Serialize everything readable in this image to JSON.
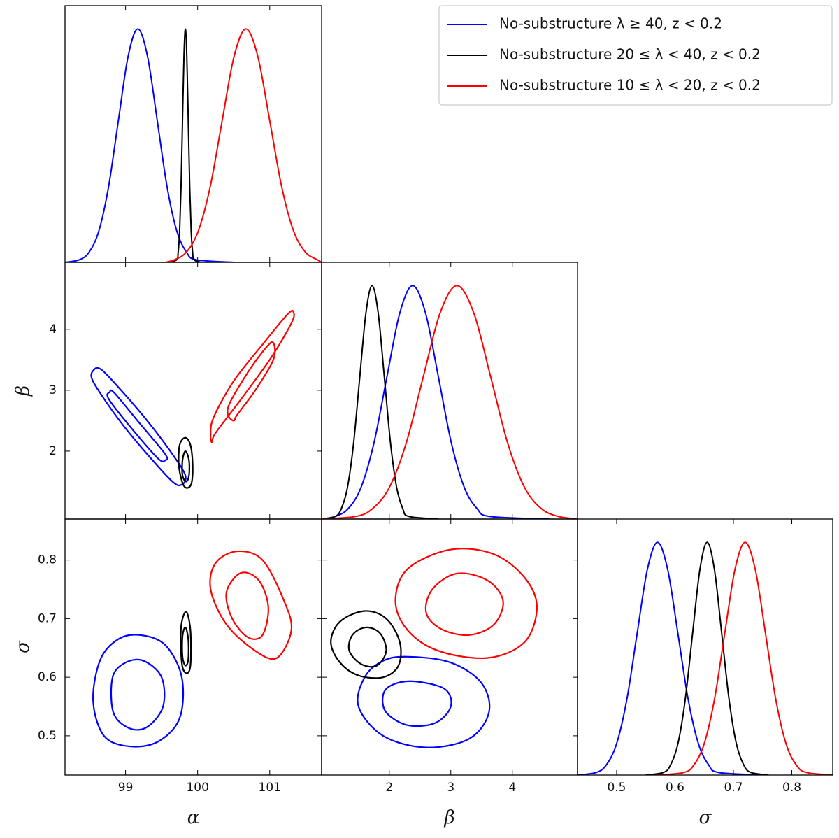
{
  "chart_data": [
    {
      "type": "density",
      "xlim": [
        98.16,
        101.72
      ],
      "ylim": [
        0,
        1.1
      ],
      "xticks": [
        99,
        100,
        101
      ],
      "series": [
        {
          "name": "No-substructure λ ≥ 40, z < 0.2",
          "color": "#0000ff",
          "x": [
            98.16,
            98.36,
            98.495,
            98.63,
            98.765,
            98.9,
            99.035,
            99.17,
            99.305,
            99.44,
            99.575,
            99.71,
            99.845,
            99.98,
            100.5
          ],
          "values": [
            0,
            0.011,
            0.044,
            0.135,
            0.325,
            0.607,
            0.882,
            1,
            0.882,
            0.607,
            0.325,
            0.135,
            0.044,
            0.011,
            0
          ]
        },
        {
          "name": "No-substructure 20 ≤ λ < 40, z < 0.2",
          "color": "#000000",
          "x": [
            99.6,
            99.71,
            99.73,
            99.75,
            99.77,
            99.79,
            99.81,
            99.83,
            99.85,
            99.87,
            99.89,
            99.91,
            99.93,
            99.95,
            100.05
          ],
          "values": [
            0,
            0.011,
            0.044,
            0.135,
            0.325,
            0.607,
            0.882,
            1,
            0.882,
            0.607,
            0.325,
            0.135,
            0.044,
            0.011,
            0
          ]
        },
        {
          "name": "No-substructure 10 ≤ λ < 20, z < 0.2",
          "color": "#ff0000",
          "x": [
            99.55,
            99.68,
            99.845,
            100.01,
            100.175,
            100.34,
            100.505,
            100.67,
            100.835,
            101.0,
            101.165,
            101.33,
            101.495,
            101.66,
            101.72
          ],
          "values": [
            0,
            0.011,
            0.044,
            0.135,
            0.325,
            0.607,
            0.882,
            1,
            0.882,
            0.607,
            0.325,
            0.135,
            0.044,
            0.011,
            0
          ]
        }
      ]
    },
    {
      "type": "contour",
      "ylabel": "β",
      "xlim": [
        98.16,
        101.72
      ],
      "ylim": [
        0.885,
        5.1
      ],
      "xticks": [
        99,
        100,
        101
      ],
      "yticks": [
        2,
        3,
        4
      ],
      "series": [
        {
          "color": "#0000ff",
          "contours": [
            {
              "x": [
                98.55,
                98.65,
                98.9,
                99.3,
                99.65,
                99.83,
                99.78,
                99.65,
                99.3,
                98.95,
                98.65,
                98.53
              ],
              "y": [
                3.32,
                3.35,
                3.05,
                2.5,
                1.95,
                1.6,
                1.45,
                1.5,
                1.95,
                2.45,
                2.95,
                3.2
              ]
            },
            {
              "x": [
                98.78,
                98.85,
                99.2,
                99.55,
                99.55,
                99.45,
                99.1,
                98.77
              ],
              "y": [
                2.97,
                2.95,
                2.45,
                1.95,
                1.85,
                1.88,
                2.35,
                2.85
              ]
            }
          ]
        },
        {
          "color": "#000000",
          "contours": [
            {
              "x": [
                99.83,
                99.9,
                99.93,
                99.92,
                99.87,
                99.8,
                99.74,
                99.75
              ],
              "y": [
                2.22,
                2.1,
                1.8,
                1.5,
                1.4,
                1.45,
                1.75,
                2.1
              ]
            },
            {
              "x": [
                99.83,
                99.88,
                99.88,
                99.84,
                99.79,
                99.79
              ],
              "y": [
                2.0,
                1.85,
                1.6,
                1.5,
                1.6,
                1.85
              ]
            }
          ]
        },
        {
          "color": "#ff0000",
          "contours": [
            {
              "x": [
                100.2,
                100.25,
                100.6,
                101.0,
                101.3,
                101.33,
                101.25,
                100.9,
                100.5,
                100.22,
                100.18
              ],
              "y": [
                2.15,
                2.3,
                2.85,
                3.5,
                4.1,
                4.28,
                4.25,
                3.75,
                3.15,
                2.55,
                2.25
              ]
            },
            {
              "x": [
                100.5,
                100.55,
                100.8,
                101.05,
                101.05,
                100.95,
                100.7,
                100.45,
                100.42
              ],
              "y": [
                2.5,
                2.6,
                3.0,
                3.5,
                3.78,
                3.7,
                3.3,
                2.8,
                2.6
              ]
            }
          ]
        }
      ]
    },
    {
      "type": "density",
      "xlim": [
        0.9,
        5.06
      ],
      "ylim": [
        0,
        1.1
      ],
      "xticks": [
        2,
        3,
        4
      ],
      "series": [
        {
          "color": "#0000ff",
          "x": [
            0.9,
            1.12,
            1.33,
            1.54,
            1.75,
            1.96,
            2.17,
            2.38,
            2.59,
            2.8,
            3.01,
            3.22,
            3.43,
            3.64,
            4.6
          ],
          "values": [
            0,
            0.011,
            0.044,
            0.135,
            0.325,
            0.607,
            0.882,
            1,
            0.882,
            0.607,
            0.325,
            0.135,
            0.044,
            0.011,
            0
          ]
        },
        {
          "color": "#000000",
          "x": [
            0.9,
            1.12,
            1.22,
            1.32,
            1.42,
            1.52,
            1.62,
            1.72,
            1.82,
            1.92,
            2.02,
            2.12,
            2.22,
            2.32,
            2.8
          ],
          "values": [
            0,
            0.011,
            0.044,
            0.135,
            0.325,
            0.607,
            0.882,
            1,
            0.882,
            0.607,
            0.325,
            0.135,
            0.044,
            0.011,
            0
          ]
        },
        {
          "color": "#ff0000",
          "x": [
            0.9,
            1.45,
            1.725,
            2.0,
            2.275,
            2.55,
            2.825,
            3.1,
            3.375,
            3.65,
            3.925,
            4.2,
            4.475,
            4.75,
            5.06
          ],
          "values": [
            0,
            0.011,
            0.044,
            0.135,
            0.325,
            0.607,
            0.882,
            1,
            0.882,
            0.607,
            0.325,
            0.135,
            0.044,
            0.011,
            0
          ]
        }
      ]
    },
    {
      "type": "contour",
      "xlabel": "α",
      "ylabel": "σ",
      "xlim": [
        98.16,
        101.72
      ],
      "ylim": [
        0.433,
        0.87
      ],
      "xticks": [
        99,
        100,
        101
      ],
      "yticks": [
        0.5,
        0.6,
        0.7,
        0.8
      ],
      "series": [
        {
          "color": "#0000ff",
          "contours": [
            {
              "x": [
                99.2,
                99.55,
                99.78,
                99.75,
                99.45,
                99.05,
                98.7,
                98.55,
                98.65,
                98.9
              ],
              "y": [
                0.672,
                0.655,
                0.6,
                0.53,
                0.49,
                0.482,
                0.5,
                0.56,
                0.63,
                0.665
              ]
            },
            {
              "x": [
                99.25,
                99.5,
                99.52,
                99.3,
                99.05,
                98.83,
                98.82,
                99.0
              ],
              "y": [
                0.628,
                0.6,
                0.55,
                0.515,
                0.513,
                0.54,
                0.6,
                0.625
              ]
            }
          ]
        },
        {
          "color": "#000000",
          "contours": [
            {
              "x": [
                99.84,
                99.9,
                99.9,
                99.84,
                99.78,
                99.77
              ],
              "y": [
                0.712,
                0.68,
                0.62,
                0.607,
                0.625,
                0.685
              ]
            },
            {
              "x": [
                99.83,
                99.87,
                99.87,
                99.83,
                99.79,
                99.79
              ],
              "y": [
                0.685,
                0.665,
                0.63,
                0.62,
                0.635,
                0.67
              ]
            }
          ]
        },
        {
          "color": "#ff0000",
          "contours": [
            {
              "x": [
                100.55,
                100.9,
                101.2,
                101.3,
                101.1,
                100.8,
                100.4,
                100.18,
                100.25
              ],
              "y": [
                0.815,
                0.8,
                0.73,
                0.68,
                0.633,
                0.645,
                0.69,
                0.75,
                0.795
              ]
            },
            {
              "x": [
                100.6,
                100.85,
                100.98,
                100.9,
                100.7,
                100.48,
                100.4
              ],
              "y": [
                0.778,
                0.765,
                0.72,
                0.672,
                0.668,
                0.7,
                0.745
              ]
            }
          ]
        }
      ]
    },
    {
      "type": "contour",
      "xlabel": "β",
      "xlim": [
        0.9,
        5.06
      ],
      "ylim": [
        0.433,
        0.87
      ],
      "xticks": [
        2,
        3,
        4
      ],
      "yticks": [
        0.5,
        0.6,
        0.7,
        0.8
      ],
      "series": [
        {
          "color": "#0000ff",
          "contours": [
            {
              "x": [
                2.3,
                3.0,
                3.5,
                3.62,
                3.3,
                2.6,
                1.9,
                1.5,
                1.6,
                1.9
              ],
              "y": [
                0.635,
                0.625,
                0.59,
                0.54,
                0.495,
                0.48,
                0.5,
                0.55,
                0.6,
                0.628
              ]
            },
            {
              "x": [
                2.4,
                2.9,
                3.0,
                2.75,
                2.3,
                1.95,
                1.9,
                2.05
              ],
              "y": [
                0.593,
                0.58,
                0.55,
                0.522,
                0.518,
                0.54,
                0.57,
                0.587
              ]
            }
          ]
        },
        {
          "color": "#000000",
          "contours": [
            {
              "x": [
                1.6,
                1.95,
                2.17,
                2.15,
                1.9,
                1.5,
                1.2,
                1.05,
                1.2
              ],
              "y": [
                0.713,
                0.7,
                0.66,
                0.62,
                0.6,
                0.603,
                0.625,
                0.66,
                0.695
              ]
            },
            {
              "x": [
                1.62,
                1.85,
                1.95,
                1.8,
                1.55,
                1.35,
                1.4
              ],
              "y": [
                0.685,
                0.675,
                0.645,
                0.62,
                0.622,
                0.645,
                0.672
              ]
            }
          ]
        },
        {
          "color": "#ff0000",
          "contours": [
            {
              "x": [
                3.0,
                3.7,
                4.2,
                4.4,
                4.2,
                3.6,
                2.8,
                2.3,
                2.1,
                2.3
              ],
              "y": [
                0.818,
                0.81,
                0.77,
                0.72,
                0.66,
                0.633,
                0.645,
                0.68,
                0.73,
                0.785
              ]
            },
            {
              "x": [
                3.1,
                3.6,
                3.85,
                3.7,
                3.3,
                2.85,
                2.6,
                2.7
              ],
              "y": [
                0.777,
                0.765,
                0.73,
                0.69,
                0.672,
                0.682,
                0.71,
                0.75
              ]
            }
          ]
        }
      ]
    },
    {
      "type": "density",
      "xlabel": "σ",
      "xlim": [
        0.433,
        0.87
      ],
      "ylim": [
        0,
        1.1
      ],
      "xticks": [
        0.5,
        0.6,
        0.7,
        0.8
      ],
      "series": [
        {
          "color": "#0000ff",
          "x": [
            0.433,
            0.465,
            0.4825,
            0.5,
            0.5175,
            0.535,
            0.5525,
            0.57,
            0.5875,
            0.605,
            0.6225,
            0.64,
            0.6575,
            0.675,
            0.75
          ],
          "values": [
            0,
            0.011,
            0.044,
            0.135,
            0.325,
            0.607,
            0.882,
            1,
            0.882,
            0.607,
            0.325,
            0.135,
            0.044,
            0.011,
            0
          ]
        },
        {
          "color": "#000000",
          "x": [
            0.55,
            0.58,
            0.5925,
            0.605,
            0.6175,
            0.63,
            0.6425,
            0.655,
            0.6675,
            0.68,
            0.6925,
            0.705,
            0.7175,
            0.73,
            0.76
          ],
          "values": [
            0,
            0.011,
            0.044,
            0.135,
            0.325,
            0.607,
            0.882,
            1,
            0.882,
            0.607,
            0.325,
            0.135,
            0.044,
            0.011,
            0
          ]
        },
        {
          "color": "#ff0000",
          "x": [
            0.57,
            0.615,
            0.6325,
            0.65,
            0.6675,
            0.685,
            0.7025,
            0.72,
            0.7375,
            0.755,
            0.7725,
            0.79,
            0.8075,
            0.825,
            0.87
          ],
          "values": [
            0,
            0.011,
            0.044,
            0.135,
            0.325,
            0.607,
            0.882,
            1,
            0.882,
            0.607,
            0.325,
            0.135,
            0.044,
            0.011,
            0
          ]
        }
      ]
    }
  ],
  "legend": {
    "position": "upper right"
  }
}
